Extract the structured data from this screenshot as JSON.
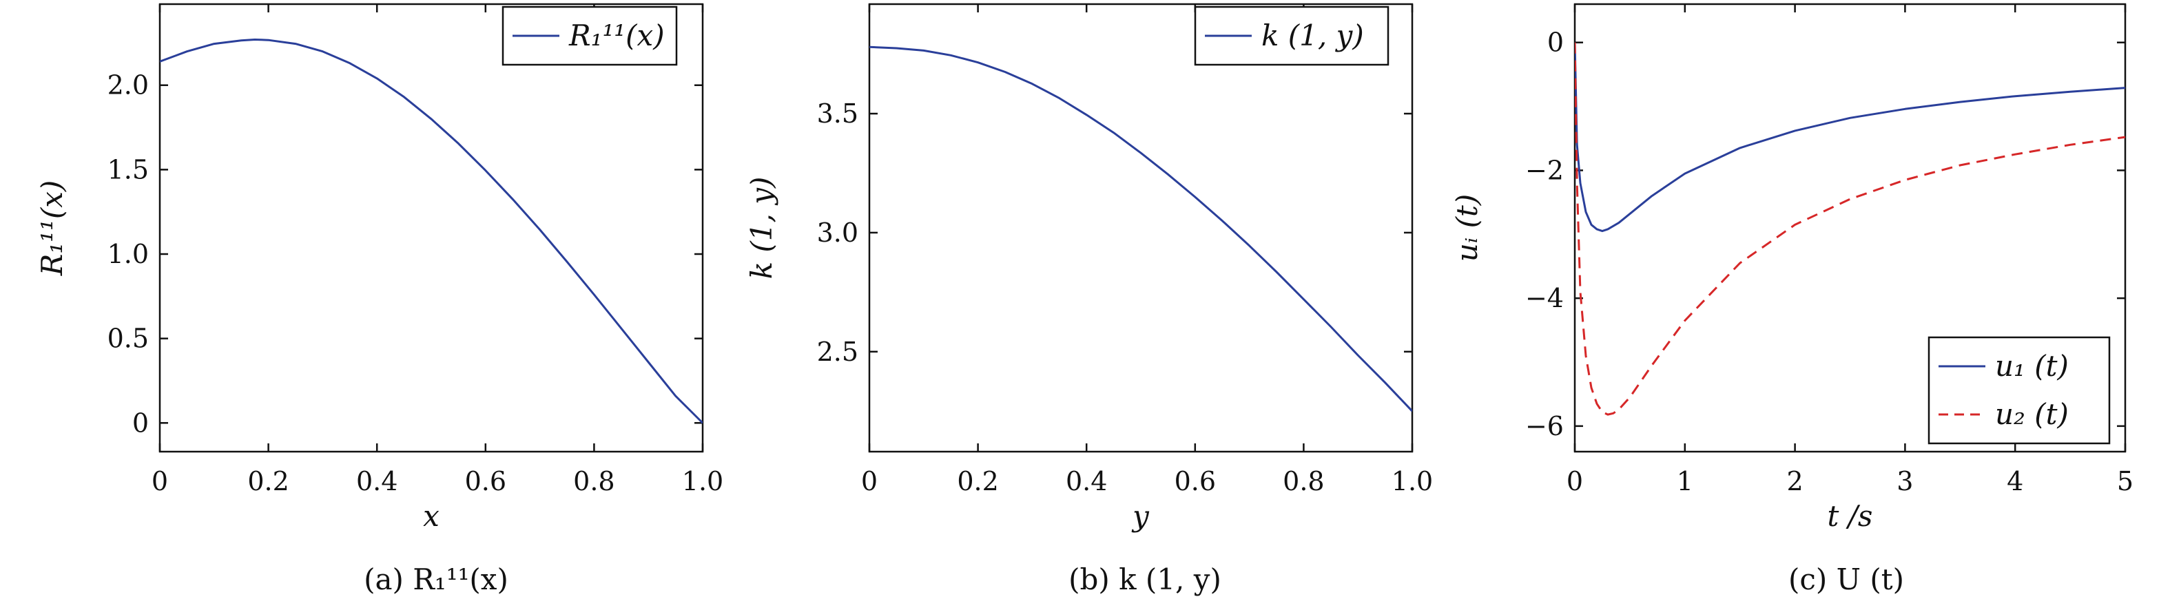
{
  "colors": {
    "blue": "#2a3f9a",
    "red": "#d62728",
    "axis": "#111111"
  },
  "captions": [
    "(a) R₁¹¹(x)",
    "(b) k (1, y)",
    "(c) U (t)"
  ],
  "chart_data": [
    {
      "type": "line",
      "xlabel": "x",
      "ylabel": "R₁¹¹(x)",
      "xlim": [
        0,
        1.0
      ],
      "ylim": [
        -0.17,
        2.48
      ],
      "xticks": [
        0,
        0.2,
        0.4,
        0.6,
        0.8,
        1.0
      ],
      "xtick_labels": [
        "0",
        "0.2",
        "0.4",
        "0.6",
        "0.8",
        "1.0"
      ],
      "yticks": [
        0,
        0.5,
        1.0,
        1.5,
        2.0
      ],
      "ytick_labels": [
        "0",
        "0.5",
        "1.0",
        "1.5",
        "2.0"
      ],
      "legend": "top-right",
      "series": [
        {
          "name": "R₁¹¹(x)",
          "color": "#2a3f9a",
          "dash": "solid",
          "x": [
            0,
            0.05,
            0.1,
            0.15,
            0.175,
            0.2,
            0.25,
            0.3,
            0.35,
            0.4,
            0.45,
            0.5,
            0.55,
            0.6,
            0.65,
            0.7,
            0.75,
            0.8,
            0.85,
            0.9,
            0.95,
            1.0
          ],
          "y": [
            2.14,
            2.2,
            2.245,
            2.265,
            2.27,
            2.267,
            2.245,
            2.2,
            2.13,
            2.04,
            1.93,
            1.8,
            1.655,
            1.495,
            1.325,
            1.145,
            0.955,
            0.76,
            0.56,
            0.36,
            0.16,
            0.0
          ]
        }
      ]
    },
    {
      "type": "line",
      "xlabel": "y",
      "ylabel": "k (1, y)",
      "xlim": [
        0,
        1.0
      ],
      "ylim": [
        2.08,
        3.96
      ],
      "xticks": [
        0,
        0.2,
        0.4,
        0.6,
        0.8,
        1.0
      ],
      "xtick_labels": [
        "0",
        "0.2",
        "0.4",
        "0.6",
        "0.8",
        "1.0"
      ],
      "yticks": [
        2.5,
        3.0,
        3.5
      ],
      "ytick_labels": [
        "2.5",
        "3.0",
        "3.5"
      ],
      "legend": "top-right",
      "series": [
        {
          "name": "k (1, y)",
          "color": "#2a3f9a",
          "dash": "solid",
          "x": [
            0,
            0.05,
            0.1,
            0.15,
            0.2,
            0.25,
            0.3,
            0.35,
            0.4,
            0.45,
            0.5,
            0.55,
            0.6,
            0.65,
            0.7,
            0.75,
            0.8,
            0.85,
            0.9,
            0.95,
            1.0
          ],
          "y": [
            3.78,
            3.775,
            3.765,
            3.745,
            3.715,
            3.675,
            3.625,
            3.565,
            3.495,
            3.42,
            3.335,
            3.245,
            3.15,
            3.05,
            2.945,
            2.835,
            2.72,
            2.605,
            2.485,
            2.37,
            2.25
          ]
        }
      ]
    },
    {
      "type": "line",
      "xlabel": "t /s",
      "ylabel": "uᵢ (t)",
      "xlim": [
        0,
        5
      ],
      "ylim": [
        -6.4,
        0.6
      ],
      "xticks": [
        0,
        1,
        2,
        3,
        4,
        5
      ],
      "xtick_labels": [
        "0",
        "1",
        "2",
        "3",
        "4",
        "5"
      ],
      "yticks": [
        -6,
        -4,
        -2,
        0
      ],
      "ytick_labels": [
        "−6",
        "−4",
        "−2",
        "0"
      ],
      "legend": "bottom-right",
      "series": [
        {
          "name": "u₁ (t)",
          "color": "#2a3f9a",
          "dash": "solid",
          "x": [
            0,
            0.02,
            0.05,
            0.1,
            0.15,
            0.2,
            0.25,
            0.3,
            0.4,
            0.5,
            0.7,
            1.0,
            1.5,
            2.0,
            2.5,
            3.0,
            3.5,
            4.0,
            4.5,
            5.0
          ],
          "y": [
            0,
            -1.6,
            -2.2,
            -2.65,
            -2.85,
            -2.92,
            -2.95,
            -2.92,
            -2.82,
            -2.68,
            -2.4,
            -2.05,
            -1.65,
            -1.38,
            -1.18,
            -1.04,
            -0.93,
            -0.84,
            -0.77,
            -0.71
          ]
        },
        {
          "name": "u₂ (t)",
          "color": "#d62728",
          "dash": "dashed",
          "x": [
            0,
            0.02,
            0.05,
            0.1,
            0.15,
            0.2,
            0.25,
            0.3,
            0.35,
            0.4,
            0.5,
            0.7,
            1.0,
            1.5,
            2.0,
            2.5,
            3.0,
            3.5,
            4.0,
            4.5,
            5.0
          ],
          "y": [
            0,
            -2.2,
            -3.9,
            -4.9,
            -5.4,
            -5.65,
            -5.78,
            -5.82,
            -5.8,
            -5.74,
            -5.55,
            -5.05,
            -4.35,
            -3.45,
            -2.85,
            -2.45,
            -2.15,
            -1.92,
            -1.75,
            -1.6,
            -1.48
          ]
        }
      ]
    }
  ]
}
